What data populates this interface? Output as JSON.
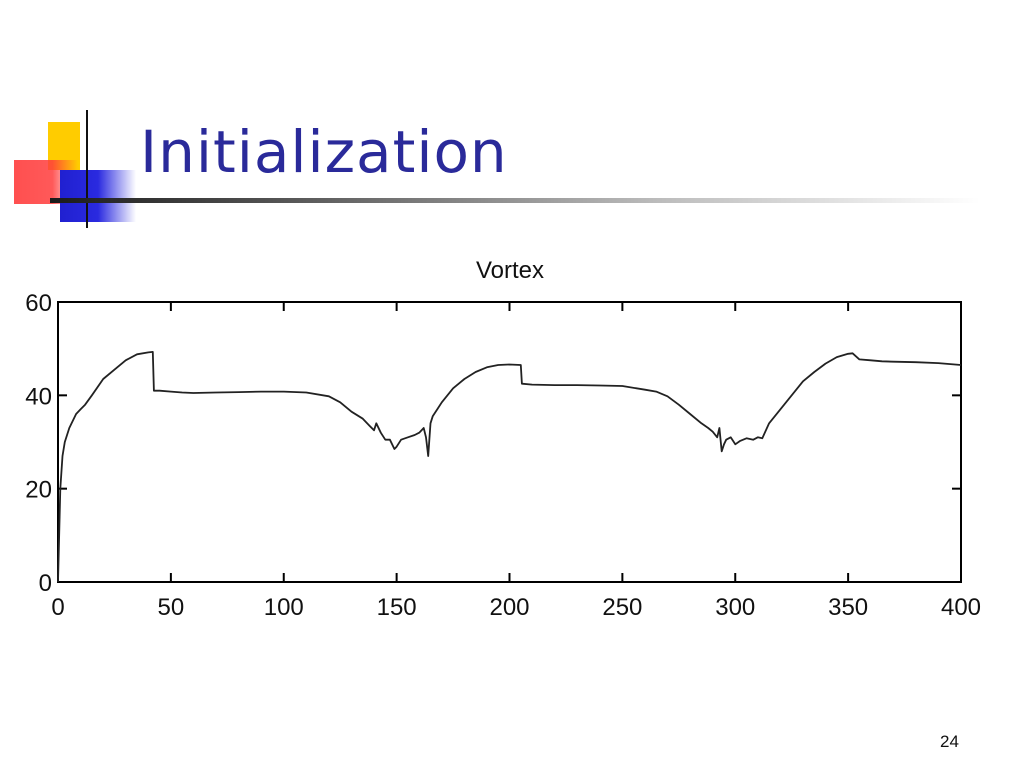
{
  "slide": {
    "title": "Initialization",
    "number": "24"
  },
  "chart_data": {
    "type": "line",
    "title": "Vortex",
    "xlabel": "",
    "ylabel": "",
    "xlim": [
      0,
      400
    ],
    "ylim": [
      0,
      60
    ],
    "xticks": [
      0,
      50,
      100,
      150,
      200,
      250,
      300,
      350,
      400
    ],
    "yticks": [
      0,
      20,
      40,
      60
    ],
    "grid": false,
    "line_color": "#222222",
    "series": [
      {
        "x": [
          0,
          1,
          2,
          3,
          5,
          8,
          10,
          12,
          15,
          20,
          25,
          30,
          35,
          40,
          42,
          42.5,
          45,
          50,
          55,
          60,
          70,
          80,
          90,
          100,
          110,
          120,
          125,
          130,
          135,
          138,
          140,
          141,
          143,
          145,
          147,
          149,
          150,
          152,
          155,
          158,
          160,
          162,
          163,
          164,
          165,
          166,
          168,
          170,
          175,
          180,
          185,
          190,
          195,
          200,
          205,
          205.5,
          210,
          220,
          230,
          240,
          250,
          260,
          265,
          270,
          275,
          280,
          285,
          288,
          290,
          292,
          293,
          294,
          295,
          296,
          298,
          300,
          302,
          305,
          308,
          310,
          312,
          315,
          320,
          325,
          330,
          335,
          340,
          345,
          350,
          352,
          355,
          360,
          365,
          370,
          380,
          390,
          400
        ],
        "y": [
          0,
          20,
          27,
          30,
          33,
          36,
          37,
          38,
          40,
          43.5,
          45.5,
          47.5,
          48.8,
          49.2,
          49.3,
          41,
          41,
          40.8,
          40.6,
          40.5,
          40.6,
          40.7,
          40.8,
          40.8,
          40.6,
          39.8,
          38.5,
          36.5,
          35,
          33.5,
          32.5,
          34,
          32,
          30.5,
          30.5,
          28.5,
          29,
          30.5,
          31,
          31.5,
          32,
          33,
          31,
          27,
          34,
          35.5,
          37,
          38.5,
          41.5,
          43.5,
          45,
          46,
          46.5,
          46.6,
          46.5,
          42.5,
          42.3,
          42.2,
          42.2,
          42.1,
          42,
          41.2,
          40.8,
          39.8,
          38,
          36,
          34,
          33,
          32.2,
          31,
          33,
          28,
          29.5,
          30.5,
          31,
          29.5,
          30.2,
          30.8,
          30.5,
          31,
          30.8,
          34,
          37,
          40,
          43,
          45,
          46.8,
          48.2,
          48.9,
          49,
          47.7,
          47.5,
          47.3,
          47.2,
          47.1,
          46.9,
          46.5
        ]
      }
    ]
  }
}
